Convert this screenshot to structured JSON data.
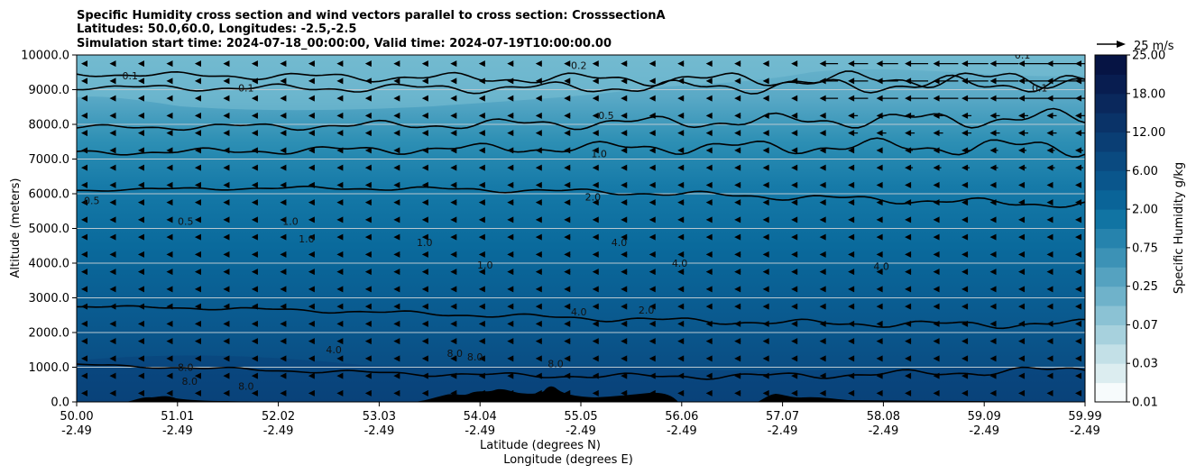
{
  "chart_data": {
    "type": "heatmap",
    "title_lines": [
      "Specific Humidity cross section and wind vectors parallel to cross section: CrosssectionA",
      "Latitudes: 50.0,60.0, Longitudes: -2.5,-2.5",
      "Simulation start time: 2024-07-18_00:00:00, Valid time: 2024-07-19T10:00:00.00"
    ],
    "ylabel": "Altitude (meters)",
    "xlabel_lines": [
      "Latitude (degrees N)",
      "Longitude (degrees E)"
    ],
    "ylim": [
      0,
      10000
    ],
    "y_ticks": [
      {
        "value": 0,
        "label": "0.0"
      },
      {
        "value": 1000,
        "label": "1000.0"
      },
      {
        "value": 2000,
        "label": "2000.0"
      },
      {
        "value": 3000,
        "label": "3000.0"
      },
      {
        "value": 4000,
        "label": "4000.0"
      },
      {
        "value": 5000,
        "label": "5000.0"
      },
      {
        "value": 6000,
        "label": "6000.0"
      },
      {
        "value": 7000,
        "label": "7000.0"
      },
      {
        "value": 8000,
        "label": "8000.0"
      },
      {
        "value": 9000,
        "label": "9000.0"
      },
      {
        "value": 10000,
        "label": "10000.0"
      }
    ],
    "x_ticks": [
      {
        "lat": "50.00",
        "lon": "-2.49"
      },
      {
        "lat": "51.01",
        "lon": "-2.49"
      },
      {
        "lat": "52.02",
        "lon": "-2.49"
      },
      {
        "lat": "53.03",
        "lon": "-2.49"
      },
      {
        "lat": "54.04",
        "lon": "-2.49"
      },
      {
        "lat": "55.05",
        "lon": "-2.49"
      },
      {
        "lat": "56.06",
        "lon": "-2.49"
      },
      {
        "lat": "57.07",
        "lon": "-2.49"
      },
      {
        "lat": "58.08",
        "lon": "-2.49"
      },
      {
        "lat": "59.09",
        "lon": "-2.49"
      },
      {
        "lat": "59.99",
        "lon": "-2.49"
      }
    ],
    "colorbar": {
      "label": "Specific Humidity g/kg",
      "levels": [
        "0.01",
        "0.03",
        "0.07",
        "0.25",
        "0.75",
        "2.00",
        "6.00",
        "12.00",
        "18.00",
        "25.00"
      ],
      "colors": [
        "#f7fbfc",
        "#dcedf0",
        "#c3e0e7",
        "#a7d1dd",
        "#8bc2d4",
        "#6fb2ca",
        "#55a2c0",
        "#3c92b6",
        "#2683ad",
        "#1174a3",
        "#0a6498",
        "#0a568c",
        "#0a4a80",
        "#0a3e74",
        "#0a3368",
        "#0a285c",
        "#081d50",
        "#061444"
      ]
    },
    "wind_key": {
      "label": "25 m/s",
      "speed": 25
    },
    "contours": [
      {
        "level": "0.1",
        "alt": 9450
      },
      {
        "level": "0.2",
        "alt": 9200
      },
      {
        "level": "0.5",
        "alt": 8050
      },
      {
        "level": "1.0",
        "alt": 7200
      },
      {
        "level": "2.0",
        "alt": 5900
      },
      {
        "level": "4.0",
        "alt": 2500
      },
      {
        "level": "8.0",
        "alt": 1000
      }
    ],
    "contour_labels": [
      {
        "text": "0.1",
        "x": 0.53,
        "alt": 9300
      },
      {
        "text": "0.1",
        "x": 1.68,
        "alt": 8950
      },
      {
        "text": "0.2",
        "x": 4.98,
        "alt": 9600
      },
      {
        "text": "0.1",
        "x": 9.38,
        "alt": 9900
      },
      {
        "text": "0.1",
        "x": 9.55,
        "alt": 8950
      },
      {
        "text": "0.5",
        "x": 5.25,
        "alt": 8150
      },
      {
        "text": "1.0",
        "x": 5.18,
        "alt": 7050
      },
      {
        "text": "2.0",
        "x": 5.12,
        "alt": 5800
      },
      {
        "text": "0.5",
        "x": 0.15,
        "alt": 5700
      },
      {
        "text": "0.5",
        "x": 1.08,
        "alt": 5100
      },
      {
        "text": "1.0",
        "x": 2.12,
        "alt": 5100
      },
      {
        "text": "1.0",
        "x": 2.28,
        "alt": 4600
      },
      {
        "text": "1.0",
        "x": 3.45,
        "alt": 4500
      },
      {
        "text": "1.0",
        "x": 4.05,
        "alt": 3850
      },
      {
        "text": "4.0",
        "x": 5.38,
        "alt": 4500
      },
      {
        "text": "4.0",
        "x": 5.98,
        "alt": 3900
      },
      {
        "text": "4.0",
        "x": 7.98,
        "alt": 3800
      },
      {
        "text": "2.0",
        "x": 5.65,
        "alt": 2550
      },
      {
        "text": "4.0",
        "x": 4.98,
        "alt": 2500
      },
      {
        "text": "4.0",
        "x": 2.55,
        "alt": 1400
      },
      {
        "text": "8.0",
        "x": 3.75,
        "alt": 1300
      },
      {
        "text": "8.0",
        "x": 3.95,
        "alt": 1200
      },
      {
        "text": "8.0",
        "x": 4.75,
        "alt": 1000
      },
      {
        "text": "8.0",
        "x": 1.08,
        "alt": 900
      },
      {
        "text": "8.0",
        "x": 1.12,
        "alt": 500
      },
      {
        "text": "8.0",
        "x": 1.68,
        "alt": 350
      }
    ]
  }
}
